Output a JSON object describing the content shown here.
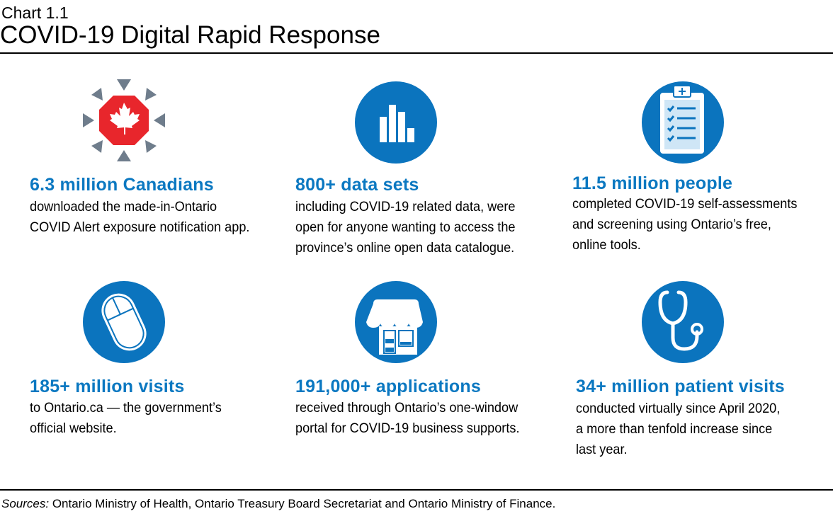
{
  "header": {
    "chart_number": "Chart 1.1",
    "title": "COVID-19 Digital Rapid Response"
  },
  "colors": {
    "accent": "#0b78c1",
    "icon_circle": "#0b74be",
    "alert_red": "#e8262c",
    "alert_gray": "#6f7d8c"
  },
  "stats": [
    {
      "icon": "covid-alert-maple-leaf-icon",
      "heading": "6.3 million Canadians",
      "lines": [
        "downloaded the made-in-Ontario",
        "COVID Alert exposure notification app."
      ]
    },
    {
      "icon": "bar-chart-icon",
      "heading": "800+ data sets",
      "lines": [
        "including COVID-19 related data, were",
        "open for anyone wanting to access the",
        "province’s online open data catalogue."
      ]
    },
    {
      "icon": "clipboard-checklist-icon",
      "heading": "11.5 million people",
      "lines": [
        "completed COVID-19 self-assessments",
        "and screening using Ontario’s free,",
        "online tools."
      ]
    },
    {
      "icon": "computer-mouse-icon",
      "heading": "185+ million visits",
      "lines": [
        "to Ontario.ca — the government’s",
        "official website."
      ]
    },
    {
      "icon": "storefront-icon",
      "heading": "191,000+ applications",
      "lines": [
        "received through Ontario’s one-window",
        "portal for COVID-19 business supports."
      ]
    },
    {
      "icon": "stethoscope-icon",
      "heading": "34+ million patient visits",
      "lines": [
        "conducted virtually since April 2020,",
        "a more than tenfold increase since",
        "last year."
      ]
    }
  ],
  "footer": {
    "sources_label": "Sources:",
    "sources_text": " Ontario Ministry of Health, Ontario Treasury Board Secretariat and Ontario Ministry of Finance."
  }
}
